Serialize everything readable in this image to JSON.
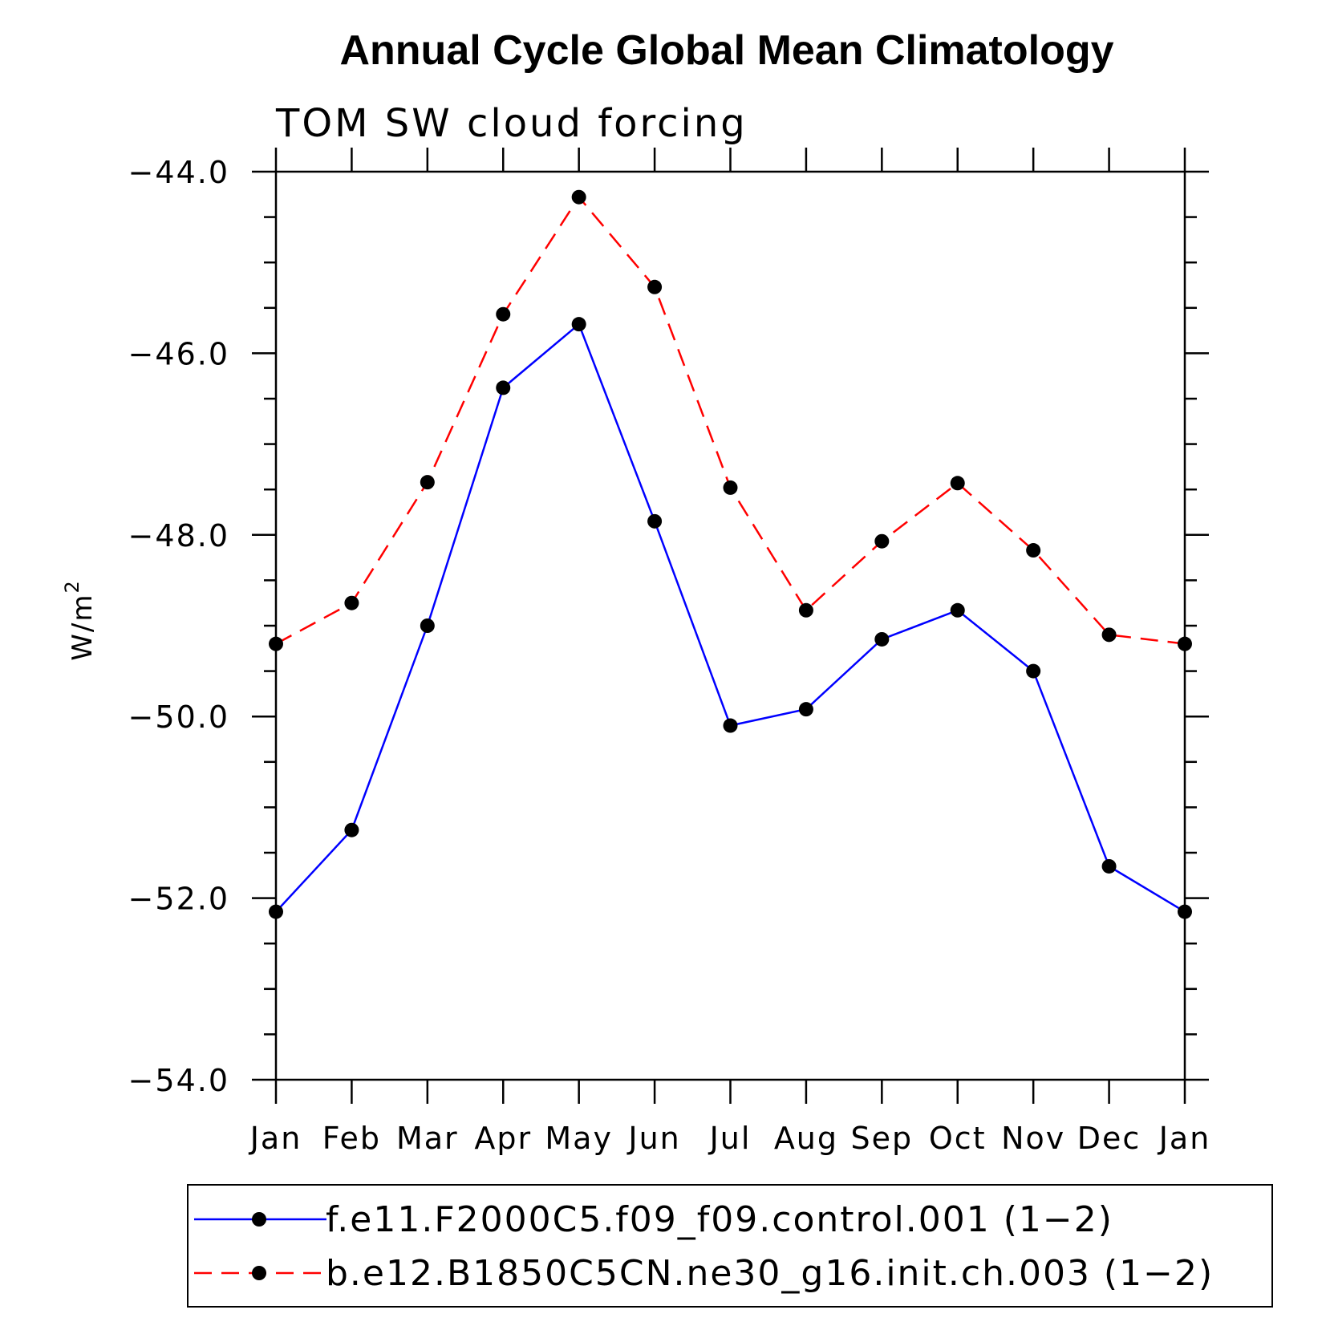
{
  "chart_data": {
    "type": "line",
    "title": "Annual Cycle Global Mean Climatology",
    "subtitle": "TOM SW cloud forcing",
    "ylabel_base": "W/m",
    "ylabel_sup": "2",
    "xlabel": "",
    "categories": [
      "Jan",
      "Feb",
      "Mar",
      "Apr",
      "May",
      "Jun",
      "Jul",
      "Aug",
      "Sep",
      "Oct",
      "Nov",
      "Dec",
      "Jan"
    ],
    "ylim": [
      -54.0,
      -44.0
    ],
    "yticks": [
      -44.0,
      -46.0,
      -48.0,
      -50.0,
      -52.0,
      -54.0
    ],
    "ytick_labels": [
      "−44.0",
      "−46.0",
      "−48.0",
      "−50.0",
      "−52.0",
      "−54.0"
    ],
    "grid": false,
    "legend_position": "bottom",
    "series": [
      {
        "name": "f.e11.F2000C5.f09_f09.control.001 (1−2)",
        "color": "#0000ff",
        "dashed": false,
        "marker": "circle",
        "values": [
          -52.15,
          -51.25,
          -49.0,
          -46.38,
          -45.68,
          -47.85,
          -50.1,
          -49.92,
          -49.15,
          -48.83,
          -49.5,
          -51.65,
          -52.15
        ]
      },
      {
        "name": "b.e12.B1850C5CN.ne30_g16.init.ch.003 (1−2)",
        "color": "#ff0000",
        "dashed": true,
        "marker": "circle",
        "values": [
          -49.2,
          -48.75,
          -47.42,
          -45.57,
          -44.28,
          -45.27,
          -47.48,
          -48.83,
          -48.07,
          -47.43,
          -48.17,
          -49.1,
          -49.2
        ]
      }
    ]
  }
}
